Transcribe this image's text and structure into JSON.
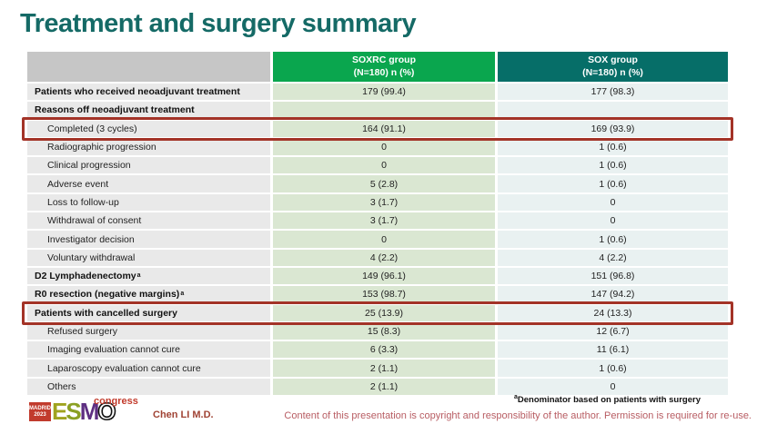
{
  "title": "Treatment and surgery summary",
  "table": {
    "columns": [
      {
        "label": "SOXRC group",
        "sub": "(N=180)  n (%)"
      },
      {
        "label": "SOX group",
        "sub": "(N=180)  n (%)"
      }
    ],
    "rows": [
      {
        "label": "Patients who received neoadjuvant treatment",
        "bold": true,
        "indent": false,
        "boxed": false,
        "soxrc": "179 (99.4)",
        "sox": "177 (98.3)"
      },
      {
        "label": "Reasons off neoadjuvant treatment",
        "bold": true,
        "indent": false,
        "boxed": false,
        "soxrc": "",
        "sox": ""
      },
      {
        "label": "Completed (3 cycles)",
        "bold": false,
        "indent": true,
        "boxed": true,
        "soxrc": "164 (91.1)",
        "sox": "169 (93.9)"
      },
      {
        "label": "Radiographic progression",
        "bold": false,
        "indent": true,
        "boxed": false,
        "soxrc": "0",
        "sox": "1 (0.6)"
      },
      {
        "label": "Clinical progression",
        "bold": false,
        "indent": true,
        "boxed": false,
        "soxrc": "0",
        "sox": "1 (0.6)"
      },
      {
        "label": "Adverse event",
        "bold": false,
        "indent": true,
        "boxed": false,
        "soxrc": "5 (2.8)",
        "sox": "1 (0.6)"
      },
      {
        "label": "Loss to follow-up",
        "bold": false,
        "indent": true,
        "boxed": false,
        "soxrc": "3 (1.7)",
        "sox": "0"
      },
      {
        "label": "Withdrawal of consent",
        "bold": false,
        "indent": true,
        "boxed": false,
        "soxrc": "3 (1.7)",
        "sox": "0"
      },
      {
        "label": "Investigator decision",
        "bold": false,
        "indent": true,
        "boxed": false,
        "soxrc": "0",
        "sox": "1 (0.6)"
      },
      {
        "label": "Voluntary withdrawal",
        "bold": false,
        "indent": true,
        "boxed": false,
        "soxrc": "4 (2.2)",
        "sox": "4 (2.2)"
      },
      {
        "label": "D2 Lymphadenectomy",
        "sup": "a",
        "bold": true,
        "indent": false,
        "boxed": false,
        "soxrc": "149 (96.1)",
        "sox": "151 (96.8)"
      },
      {
        "label": "R0 resection (negative margins)",
        "sup": "a",
        "bold": true,
        "indent": false,
        "boxed": false,
        "soxrc": "153 (98.7)",
        "sox": "147 (94.2)"
      },
      {
        "label": "Patients with cancelled surgery",
        "bold": true,
        "indent": false,
        "boxed": true,
        "soxrc": "25 (13.9)",
        "sox": "24 (13.3)"
      },
      {
        "label": "Refused surgery",
        "bold": false,
        "indent": true,
        "boxed": false,
        "soxrc": "15 (8.3)",
        "sox": "12 (6.7)"
      },
      {
        "label": "Imaging evaluation cannot cure",
        "bold": false,
        "indent": true,
        "boxed": false,
        "soxrc": "6 (3.3)",
        "sox": "11 (6.1)"
      },
      {
        "label": "Laparoscopy evaluation cannot cure",
        "bold": false,
        "indent": true,
        "boxed": false,
        "soxrc": "2 (1.1)",
        "sox": "1 (0.6)"
      },
      {
        "label": "Others",
        "bold": false,
        "indent": true,
        "boxed": false,
        "soxrc": "2 (1.1)",
        "sox": "0"
      }
    ]
  },
  "footnote": {
    "sup": "a",
    "text": "Denominator based on patients with surgery"
  },
  "footer": {
    "logo": {
      "badge_line1": "MADRID",
      "badge_line2": "2023",
      "letters": {
        "e": "E",
        "s": "S",
        "m": "M",
        "o": "O"
      },
      "congress": "congress"
    },
    "author": "Chen LI M.D.",
    "copyright": "Content of this presentation is copyright and responsibility of the author.  Permission is required for re-use."
  },
  "colors": {
    "title_teal": "#156a66",
    "header_green": "#0aa64e",
    "header_teal": "#066e68",
    "label_col_bg": "#e9e9e9",
    "soxrc_col_bg": "#dae7d2",
    "sox_col_bg": "#e9f1f1",
    "highlight_box": "#a33327",
    "author_red": "#a04334",
    "copyright_rose": "#b85d63"
  }
}
